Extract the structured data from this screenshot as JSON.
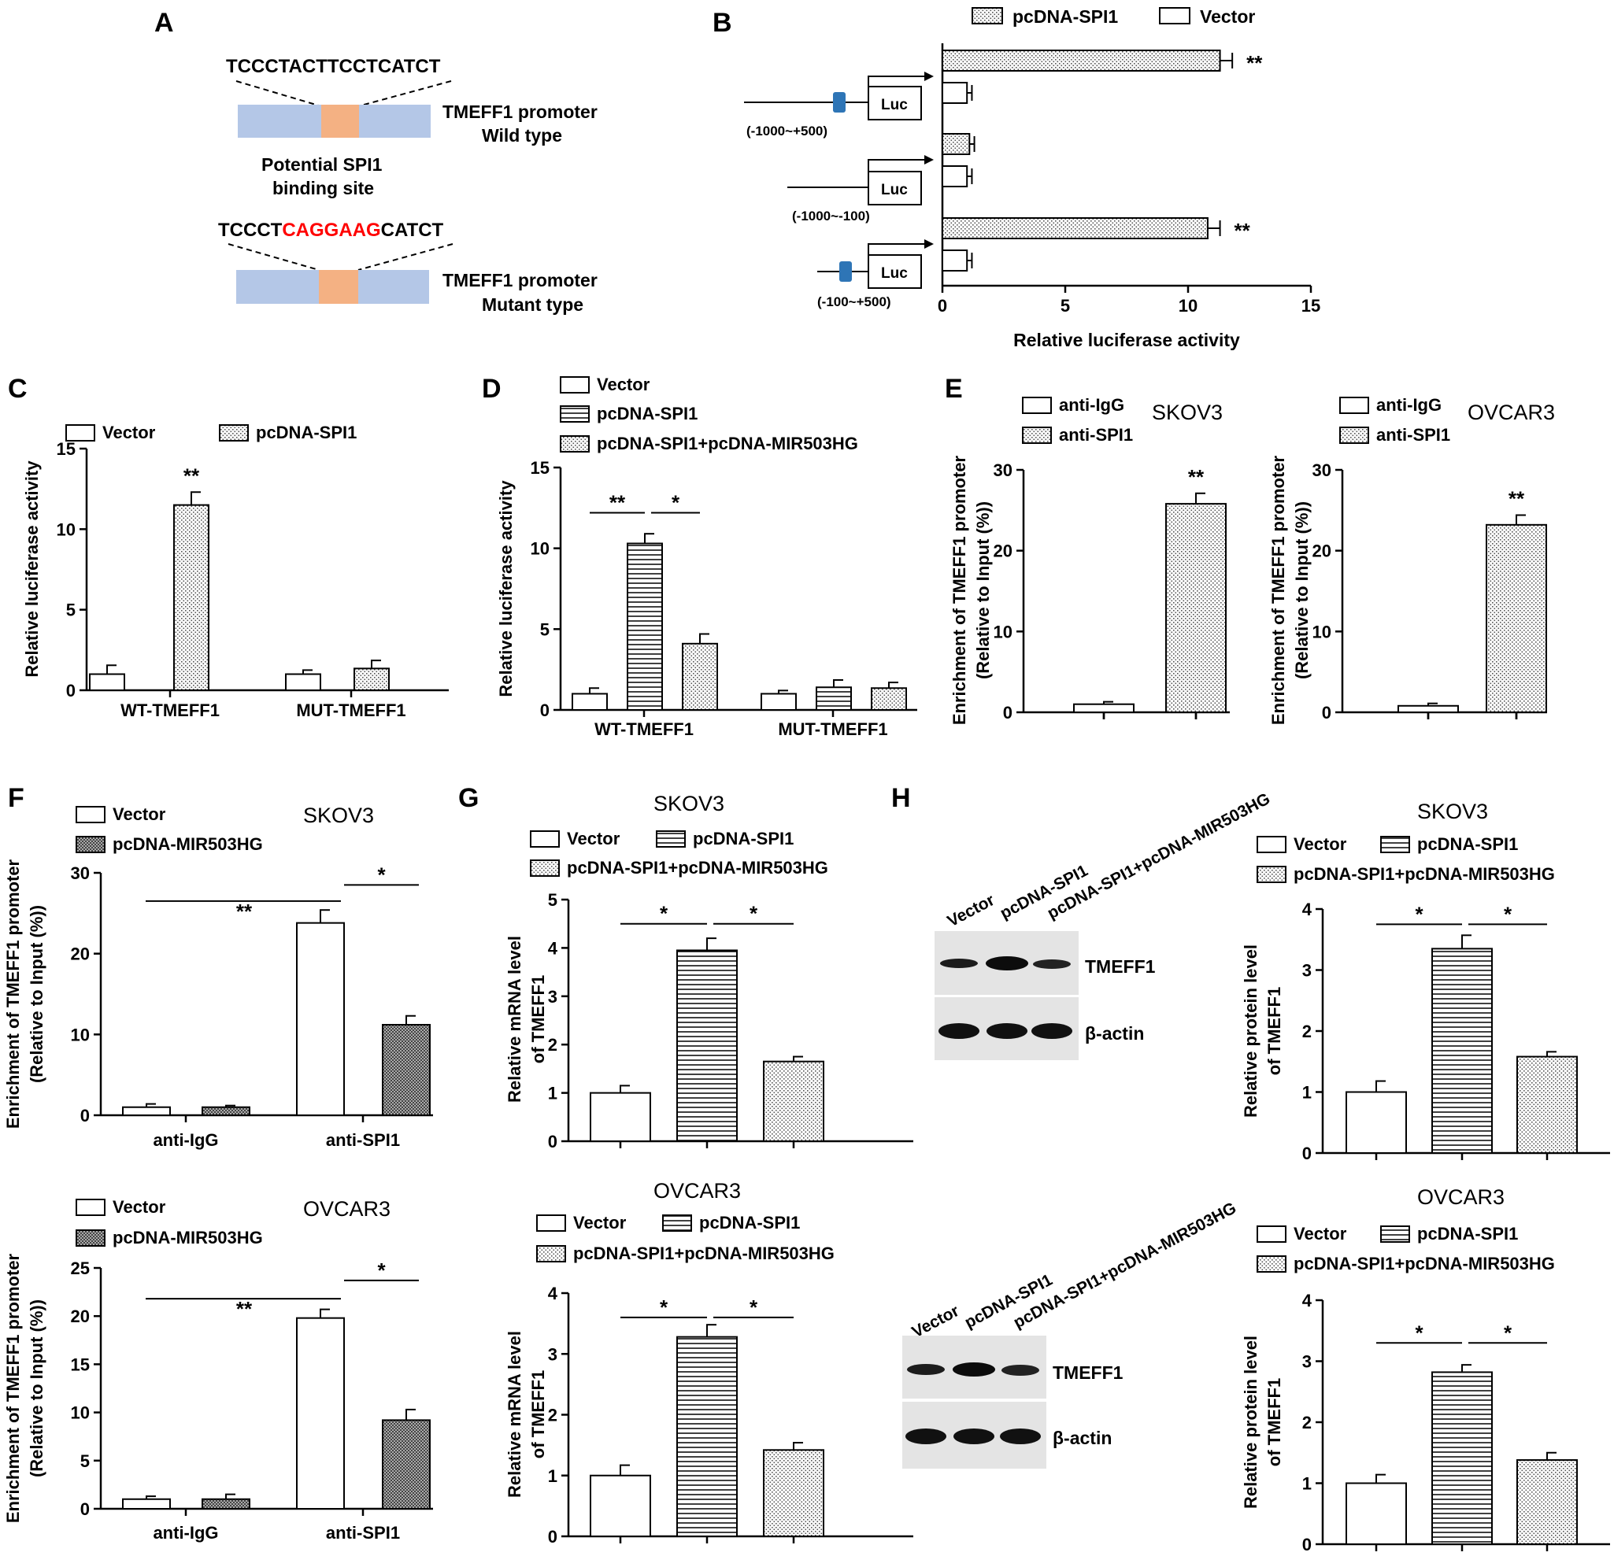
{
  "panel_letters": [
    "A",
    "B",
    "C",
    "D",
    "E",
    "F",
    "G",
    "H"
  ],
  "panel_a": {
    "wt_sequence": "TCCCTACTTCCTCATCT",
    "wt_label": [
      "TMEFF1 promoter",
      "Wild type"
    ],
    "site_label": [
      "Potential SPI1",
      "binding site"
    ],
    "mut_seq_left": "TCCCT",
    "mut_seq_mid": "CAGGAAG",
    "mut_seq_right": "CATCT",
    "mut_label": [
      "TMEFF1 promoter",
      "Mutant type"
    ],
    "colors": {
      "promoter": "#b4c7e7",
      "site": "#f4b183",
      "mutation": "#ff0000"
    }
  },
  "panel_b": {
    "legend": [
      "pcDNA-SPI1",
      "Vector"
    ],
    "luc_label": "Luc",
    "constructs": [
      "(-1000~+500)",
      "(-1000~-100)",
      "(-100~+500)"
    ],
    "colors": {
      "binding_site": "#2e75b6"
    }
  },
  "panel_h": {
    "lanes": [
      "Vector",
      "pcDNA-SPI1",
      "pcDNA-SPI1+pcDNA-MIR503HG"
    ],
    "bands": [
      "TMEFF1",
      "β-actin"
    ]
  },
  "chart_data": [
    {
      "id": "B",
      "type": "bar",
      "orientation": "horizontal",
      "title": "",
      "xlabel": "Relative luciferase activity",
      "xlim": [
        0,
        15
      ],
      "ticks": [
        0,
        5,
        10,
        15
      ],
      "categories": [
        "(-1000~+500)",
        "(-1000~-100)",
        "(-100~+500)"
      ],
      "series": [
        {
          "name": "pcDNA-SPI1",
          "values": [
            11.3,
            1.1,
            10.8
          ],
          "errors": [
            0.5,
            0.2,
            0.5
          ],
          "pattern": "dots"
        },
        {
          "name": "Vector",
          "values": [
            1.0,
            1.0,
            1.0
          ],
          "errors": [
            0.2,
            0.2,
            0.2
          ],
          "pattern": "white"
        }
      ],
      "annotations": [
        "**",
        "",
        "**"
      ]
    },
    {
      "id": "C",
      "type": "bar",
      "title": "",
      "ylabel": "Relative luciferase activity",
      "ylim": [
        0,
        15
      ],
      "ticks": [
        0,
        5,
        10,
        15
      ],
      "categories": [
        "WT-TMEFF1",
        "MUT-TMEFF1"
      ],
      "series": [
        {
          "name": "Vector",
          "values": [
            1.0,
            1.0
          ],
          "errors": [
            0.55,
            0.25
          ],
          "pattern": "white"
        },
        {
          "name": "pcDNA-SPI1",
          "values": [
            11.5,
            1.35
          ],
          "errors": [
            0.8,
            0.5
          ],
          "pattern": "dots"
        }
      ],
      "annotations": [
        "**"
      ]
    },
    {
      "id": "D",
      "type": "bar",
      "title": "",
      "ylabel": "Relative luciferase activity",
      "ylim": [
        0,
        15
      ],
      "ticks": [
        0,
        5,
        10,
        15
      ],
      "categories": [
        "WT-TMEFF1",
        "MUT-TMEFF1"
      ],
      "series": [
        {
          "name": "Vector",
          "values": [
            1.0,
            1.0
          ],
          "errors": [
            0.35,
            0.2
          ],
          "pattern": "white"
        },
        {
          "name": "pcDNA-SPI1",
          "values": [
            10.3,
            1.4
          ],
          "errors": [
            0.6,
            0.45
          ],
          "pattern": "hlines"
        },
        {
          "name": "pcDNA-SPI1+pcDNA-MIR503HG",
          "values": [
            4.1,
            1.35
          ],
          "errors": [
            0.6,
            0.35
          ],
          "pattern": "dots"
        }
      ],
      "annotations": [
        "**",
        "*"
      ]
    },
    {
      "id": "E1",
      "type": "bar",
      "title": "SKOV3",
      "ylabel": [
        "Enrichment of TMEFF1 promoter",
        "(Relative to Input (%))"
      ],
      "ylim": [
        0,
        30
      ],
      "ticks": [
        0,
        10,
        20,
        30
      ],
      "categories": [
        "anti-IgG",
        "anti-SPI1"
      ],
      "series": [
        {
          "name": "anti-IgG",
          "pattern": "white"
        },
        {
          "name": "anti-SPI1",
          "pattern": "dots"
        }
      ],
      "values": [
        1.0,
        25.8
      ],
      "errors": [
        0.3,
        1.3
      ],
      "annotations": [
        "**"
      ]
    },
    {
      "id": "E2",
      "type": "bar",
      "title": "OVCAR3",
      "ylabel": [
        "Enrichment of TMEFF1 promoter",
        "(Relative to Input (%))"
      ],
      "ylim": [
        0,
        30
      ],
      "ticks": [
        0,
        10,
        20,
        30
      ],
      "categories": [
        "anti-IgG",
        "anti-SPI1"
      ],
      "series": [
        {
          "name": "anti-IgG",
          "pattern": "white"
        },
        {
          "name": "anti-SPI1",
          "pattern": "dots"
        }
      ],
      "values": [
        0.8,
        23.2
      ],
      "errors": [
        0.3,
        1.2
      ],
      "annotations": [
        "**"
      ]
    },
    {
      "id": "F1",
      "type": "bar",
      "title": "SKOV3",
      "ylabel": [
        "Enrichment of TMEFF1 promoter",
        "(Relative to Input (%))"
      ],
      "ylim": [
        0,
        30
      ],
      "ticks": [
        0,
        10,
        20,
        30
      ],
      "categories": [
        "anti-IgG",
        "anti-SPI1"
      ],
      "series": [
        {
          "name": "Vector",
          "values": [
            1.0,
            23.8
          ],
          "errors": [
            0.4,
            1.6
          ],
          "pattern": "white"
        },
        {
          "name": "pcDNA-MIR503HG",
          "values": [
            1.0,
            11.2
          ],
          "errors": [
            0.2,
            1.1
          ],
          "pattern": "dense"
        }
      ],
      "annotations": [
        "**",
        "*"
      ]
    },
    {
      "id": "F2",
      "type": "bar",
      "title": "OVCAR3",
      "ylabel": [
        "Enrichment of TMEFF1 promoter",
        "(Relative to Input (%))"
      ],
      "ylim": [
        0,
        25
      ],
      "ticks": [
        0,
        5,
        10,
        15,
        20,
        25
      ],
      "categories": [
        "anti-IgG",
        "anti-SPI1"
      ],
      "series": [
        {
          "name": "Vector",
          "values": [
            1.0,
            19.8
          ],
          "errors": [
            0.3,
            0.9
          ],
          "pattern": "white"
        },
        {
          "name": "pcDNA-MIR503HG",
          "values": [
            1.0,
            9.2
          ],
          "errors": [
            0.5,
            1.1
          ],
          "pattern": "dense"
        }
      ],
      "annotations": [
        "**",
        "*"
      ]
    },
    {
      "id": "G1",
      "type": "bar",
      "title": "SKOV3",
      "ylabel": [
        "Relative mRNA level",
        "of TMEFF1"
      ],
      "ylim": [
        0,
        5
      ],
      "ticks": [
        0,
        1,
        2,
        3,
        4,
        5
      ],
      "categories": [
        "Vector",
        "pcDNA-SPI1",
        "pcDNA-SPI1+pcDNA-MIR503HG"
      ],
      "series": [
        {
          "name": "Vector",
          "pattern": "white"
        },
        {
          "name": "pcDNA-SPI1",
          "pattern": "hlines"
        },
        {
          "name": "pcDNA-SPI1+pcDNA-MIR503HG",
          "pattern": "dots"
        }
      ],
      "values": [
        1.0,
        3.95,
        1.65
      ],
      "errors": [
        0.15,
        0.25,
        0.1
      ],
      "annotations": [
        "*",
        "*"
      ]
    },
    {
      "id": "G2",
      "type": "bar",
      "title": "OVCAR3",
      "ylabel": [
        "Relative mRNA level",
        "of TMEFF1"
      ],
      "ylim": [
        0,
        4
      ],
      "ticks": [
        0,
        1,
        2,
        3,
        4
      ],
      "categories": [
        "Vector",
        "pcDNA-SPI1",
        "pcDNA-SPI1+pcDNA-MIR503HG"
      ],
      "series": [
        {
          "name": "Vector",
          "pattern": "white"
        },
        {
          "name": "pcDNA-SPI1",
          "pattern": "hlines"
        },
        {
          "name": "pcDNA-SPI1+pcDNA-MIR503HG",
          "pattern": "dots"
        }
      ],
      "values": [
        1.0,
        3.28,
        1.42
      ],
      "errors": [
        0.17,
        0.2,
        0.12
      ],
      "annotations": [
        "*",
        "*"
      ]
    },
    {
      "id": "H1",
      "type": "bar",
      "title": "SKOV3",
      "ylabel": [
        "Relative protein level",
        "of TMEFF1"
      ],
      "ylim": [
        0,
        4
      ],
      "ticks": [
        0,
        1,
        2,
        3,
        4
      ],
      "categories": [
        "Vector",
        "pcDNA-SPI1",
        "pcDNA-SPI1+pcDNA-MIR503HG"
      ],
      "series": [
        {
          "name": "Vector",
          "pattern": "white"
        },
        {
          "name": "pcDNA-SPI1",
          "pattern": "hlines"
        },
        {
          "name": "pcDNA-SPI1+pcDNA-MIR503HG",
          "pattern": "dots"
        }
      ],
      "values": [
        1.0,
        3.35,
        1.58
      ],
      "errors": [
        0.18,
        0.22,
        0.08
      ],
      "annotations": [
        "*",
        "*"
      ]
    },
    {
      "id": "H2",
      "type": "bar",
      "title": "OVCAR3",
      "ylabel": [
        "Relative protein level",
        "of TMEFF1"
      ],
      "ylim": [
        0,
        4
      ],
      "ticks": [
        0,
        1,
        2,
        3,
        4
      ],
      "categories": [
        "Vector",
        "pcDNA-SPI1",
        "pcDNA-SPI1+pcDNA-MIR503HG"
      ],
      "series": [
        {
          "name": "Vector",
          "pattern": "white"
        },
        {
          "name": "pcDNA-SPI1",
          "pattern": "hlines"
        },
        {
          "name": "pcDNA-SPI1+pcDNA-MIR503HG",
          "pattern": "dots"
        }
      ],
      "values": [
        1.0,
        2.82,
        1.38
      ],
      "errors": [
        0.14,
        0.12,
        0.12
      ],
      "annotations": [
        "*",
        "*"
      ]
    }
  ]
}
